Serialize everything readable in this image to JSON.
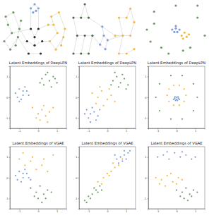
{
  "chart_data": [
    {
      "type": "network",
      "tick_labels": false,
      "series": [
        {
          "color": "#6e9a67",
          "x": [
            1,
            2,
            1.5,
            2.5,
            3,
            1.2,
            2.2,
            2.8,
            1.8,
            3.2
          ],
          "values": [
            4,
            5,
            6,
            3.5,
            5.5,
            7,
            7.5,
            4.5,
            3,
            6.5
          ]
        },
        {
          "color": "#f5b942",
          "x": [
            7,
            8,
            7.5,
            8.5,
            9,
            7.2,
            8.2,
            8.8,
            7.8,
            6.8
          ],
          "values": [
            4,
            5,
            6,
            3.5,
            5.5,
            7,
            7.5,
            4.5,
            3,
            6
          ]
        },
        {
          "color": "#7d9ed6",
          "x": [
            4.5,
            5,
            5.5,
            4.8,
            5.2
          ],
          "values": [
            8,
            8.5,
            8,
            7.5,
            7.7
          ]
        },
        {
          "color": "#2a2a2a",
          "x": [
            4,
            5,
            6,
            4.5,
            5.5,
            5,
            4.2,
            5.8
          ],
          "values": [
            4,
            3.5,
            4,
            5.5,
            5.5,
            4.5,
            2.5,
            2.5
          ]
        }
      ],
      "edges": [
        [
          0,
          0,
          0,
          1
        ],
        [
          0,
          1,
          0,
          2
        ],
        [
          0,
          2,
          0,
          5
        ],
        [
          0,
          3,
          0,
          4
        ],
        [
          0,
          4,
          0,
          6
        ],
        [
          0,
          5,
          0,
          6
        ],
        [
          0,
          7,
          0,
          8
        ],
        [
          0,
          8,
          0,
          0
        ],
        [
          0,
          9,
          0,
          4
        ],
        [
          0,
          1,
          3,
          3
        ],
        [
          0,
          4,
          3,
          0
        ],
        [
          0,
          7,
          3,
          6
        ],
        [
          1,
          0,
          1,
          1
        ],
        [
          1,
          1,
          1,
          2
        ],
        [
          1,
          2,
          1,
          5
        ],
        [
          1,
          3,
          1,
          4
        ],
        [
          1,
          4,
          1,
          6
        ],
        [
          1,
          5,
          1,
          6
        ],
        [
          1,
          7,
          1,
          8
        ],
        [
          1,
          8,
          1,
          0
        ],
        [
          1,
          9,
          1,
          2
        ],
        [
          1,
          0,
          3,
          2
        ],
        [
          1,
          9,
          3,
          4
        ],
        [
          2,
          0,
          2,
          1
        ],
        [
          2,
          1,
          2,
          2
        ],
        [
          2,
          3,
          2,
          4
        ],
        [
          2,
          0,
          3,
          3
        ],
        [
          2,
          2,
          3,
          4
        ],
        [
          3,
          0,
          3,
          1
        ],
        [
          3,
          1,
          3,
          2
        ],
        [
          3,
          3,
          3,
          5
        ],
        [
          3,
          4,
          3,
          5
        ],
        [
          3,
          6,
          3,
          7
        ],
        [
          3,
          5,
          3,
          1
        ]
      ]
    },
    {
      "type": "network",
      "tick_labels": false,
      "series": [
        {
          "color": "#4b6a47",
          "x": [
            1,
            2,
            3,
            1.5,
            2.5,
            3.5,
            1,
            2,
            3,
            2.5
          ],
          "values": [
            3,
            3,
            3,
            5,
            5,
            5,
            7,
            7,
            7,
            8.5
          ]
        },
        {
          "color": "#7d9ed6",
          "x": [
            4.5,
            5,
            5.5,
            4.8,
            5.2
          ],
          "values": [
            4,
            5,
            4.5,
            6,
            3.5
          ]
        },
        {
          "color": "#f5b942",
          "x": [
            7,
            8,
            9,
            6.5,
            7.5,
            8.5,
            9,
            7,
            8,
            8.5
          ],
          "values": [
            3,
            3,
            3.5,
            5,
            5,
            5,
            6.5,
            7,
            7,
            8
          ]
        }
      ],
      "edges": [
        [
          0,
          0,
          0,
          1
        ],
        [
          0,
          1,
          0,
          2
        ],
        [
          0,
          0,
          0,
          3
        ],
        [
          0,
          3,
          0,
          4
        ],
        [
          0,
          4,
          0,
          5
        ],
        [
          0,
          3,
          0,
          6
        ],
        [
          0,
          6,
          0,
          7
        ],
        [
          0,
          7,
          0,
          8
        ],
        [
          0,
          8,
          0,
          9
        ],
        [
          0,
          4,
          0,
          1
        ],
        [
          0,
          5,
          0,
          2
        ],
        [
          0,
          9,
          0,
          7
        ],
        [
          0,
          5,
          1,
          0
        ],
        [
          0,
          8,
          1,
          3
        ],
        [
          1,
          0,
          1,
          1
        ],
        [
          1,
          1,
          1,
          2
        ],
        [
          1,
          1,
          1,
          3
        ],
        [
          1,
          2,
          1,
          4
        ],
        [
          1,
          4,
          1,
          0
        ],
        [
          1,
          3,
          2,
          3
        ],
        [
          1,
          2,
          2,
          4
        ],
        [
          2,
          0,
          2,
          1
        ],
        [
          2,
          1,
          2,
          2
        ],
        [
          2,
          3,
          2,
          4
        ],
        [
          2,
          4,
          2,
          5
        ],
        [
          2,
          5,
          2,
          6
        ],
        [
          2,
          7,
          2,
          8
        ],
        [
          2,
          8,
          2,
          9
        ],
        [
          2,
          0,
          2,
          4
        ],
        [
          2,
          6,
          2,
          9
        ],
        [
          2,
          7,
          2,
          4
        ]
      ]
    },
    {
      "type": "network",
      "tick_labels": false,
      "series": [
        {
          "color": "#6e9a67",
          "x": [
            1,
            2,
            3,
            8,
            9,
            7,
            2,
            8,
            5,
            4,
            6,
            1.5
          ],
          "values": [
            5,
            8,
            2,
            7,
            4,
            2,
            6,
            9,
            9,
            1,
            1.5,
            3
          ]
        },
        {
          "color": "#7d9ed6",
          "x": [
            4.5,
            5,
            5.5,
            4.8,
            5.2,
            5
          ],
          "values": [
            5,
            5.2,
            5,
            4.6,
            4.6,
            5.6
          ]
        },
        {
          "color": "#f5b942",
          "x": [
            5.8,
            6.2,
            6.5,
            6,
            6.8
          ],
          "values": [
            4,
            4.5,
            3.8,
            3.5,
            4.2
          ]
        }
      ]
    },
    {
      "type": "scatter",
      "title": "Latent Embeddings of DeepLPN",
      "xlim": [
        -1.5,
        1.5
      ],
      "ylim": [
        -1.5,
        1.5
      ],
      "xticks": [
        -1,
        0,
        1
      ],
      "yticks": [
        -1,
        0,
        1
      ],
      "series": [
        {
          "color": "#6e9a67",
          "x": [
            0.2,
            0.4,
            0.6,
            0.8,
            1.0,
            0.3,
            0.5,
            0.7,
            0.9,
            0.1
          ],
          "values": [
            0.9,
            1.1,
            0.8,
            1.0,
            0.7,
            0.6,
            1.2,
            0.5,
            0.9,
            0.7
          ]
        },
        {
          "color": "#7d9ed6",
          "x": [
            -1.2,
            -1.0,
            -0.8,
            -0.6,
            -0.9,
            -1.1,
            -0.7,
            -0.5,
            -0.8,
            -1.0
          ],
          "values": [
            0.2,
            0.4,
            0.1,
            0.3,
            -0.1,
            0.0,
            0.5,
            0.1,
            0.3,
            -0.2
          ]
        },
        {
          "color": "#f5b942",
          "x": [
            -0.3,
            0.0,
            0.2,
            0.4,
            0.6,
            0.1,
            0.3,
            -0.1,
            0.5,
            0.8
          ],
          "values": [
            -0.5,
            -0.8,
            -0.6,
            -0.9,
            -0.7,
            -1.1,
            -0.4,
            -1.0,
            -1.2,
            -0.5
          ]
        }
      ]
    },
    {
      "type": "scatter",
      "title": "Latent Embeddings of DeepLPN",
      "xlim": [
        -1.5,
        1.5
      ],
      "ylim": [
        -1.5,
        1.5
      ],
      "xticks": [
        -1,
        0,
        1
      ],
      "yticks": [
        -1,
        0,
        1
      ],
      "series": [
        {
          "color": "#6e9a67",
          "x": [
            0.3,
            0.5,
            0.7,
            0.9,
            1.1,
            0.4,
            0.6,
            0.8,
            1.0,
            0.2
          ],
          "values": [
            0.8,
            1.0,
            0.7,
            0.9,
            0.6,
            1.2,
            0.5,
            1.1,
            0.4,
            0.6
          ]
        },
        {
          "color": "#f5b942",
          "x": [
            -0.8,
            -0.5,
            -0.3,
            0.0,
            0.2,
            -0.6,
            -0.2,
            0.1,
            -0.4,
            0.4
          ],
          "values": [
            0.2,
            0.0,
            0.3,
            -0.1,
            0.1,
            -0.3,
            -0.4,
            0.4,
            0.5,
            -0.2
          ]
        },
        {
          "color": "#7d9ed6",
          "x": [
            -1.1,
            -0.9,
            -0.7,
            -0.5,
            -1.0,
            -0.8,
            -0.6,
            -1.2,
            -0.4,
            -0.9
          ],
          "values": [
            -0.6,
            -0.8,
            -0.7,
            -0.9,
            -1.0,
            -0.5,
            -1.1,
            -0.8,
            -0.6,
            -1.2
          ]
        }
      ]
    },
    {
      "type": "scatter",
      "title": "Latent Embeddings of DeepLPN",
      "xlim": [
        -1.5,
        1.5
      ],
      "ylim": [
        -1.5,
        1.5
      ],
      "xticks": [
        -1,
        0,
        1
      ],
      "yticks": [
        -1,
        0,
        1
      ],
      "series": [
        {
          "color": "#6e9a67",
          "x": [
            1.1,
            0.9,
            0.3,
            -0.3,
            -0.9,
            -1.1,
            -0.9,
            -0.3,
            0.3,
            0.9
          ],
          "values": [
            0.0,
            0.65,
            1.05,
            1.05,
            0.65,
            0.0,
            -0.65,
            -1.05,
            -1.05,
            -0.65
          ]
        },
        {
          "color": "#f5b942",
          "x": [
            0.5,
            0.4,
            0.15,
            -0.15,
            -0.4,
            -0.5,
            -0.4,
            -0.15,
            0.15,
            0.4
          ],
          "values": [
            0.1,
            0.4,
            0.58,
            0.58,
            0.4,
            0.1,
            -0.2,
            -0.38,
            -0.38,
            -0.2
          ]
        },
        {
          "color": "#7d9ed6",
          "x": [
            -0.1,
            0.0,
            0.1,
            -0.05,
            0.05,
            -0.15,
            0.15,
            0.0,
            -0.08,
            0.08
          ],
          "values": [
            -0.05,
            -0.1,
            -0.05,
            -0.15,
            -0.15,
            -0.1,
            -0.1,
            0.0,
            0.02,
            0.02
          ]
        }
      ]
    },
    {
      "type": "scatter",
      "title": "Latent Embeddings of VGAE",
      "xlim": [
        -1.5,
        1.5
      ],
      "ylim": [
        -1.5,
        1.5
      ],
      "xticks": [
        -1,
        0,
        1
      ],
      "yticks": [
        -1,
        0,
        1
      ],
      "series": [
        {
          "color": "#f5b942",
          "x": [
            -1.0,
            -0.7,
            -0.4,
            -0.1,
            0.2,
            0.5,
            -0.8,
            -0.3,
            0.3,
            0.8
          ],
          "values": [
            0.9,
            0.6,
            0.8,
            0.4,
            0.6,
            0.3,
            1.2,
            1.0,
            0.9,
            1.1
          ]
        },
        {
          "color": "#7d9ed6",
          "x": [
            -1.2,
            -1.0,
            -0.8,
            -0.6,
            -0.9,
            -1.1,
            -0.7,
            -0.5,
            -0.8,
            -0.4
          ],
          "values": [
            0.1,
            0.3,
            0.0,
            0.2,
            -0.2,
            -0.1,
            0.4,
            0.0,
            0.2,
            -0.1
          ]
        },
        {
          "color": "#6e9a67",
          "x": [
            -0.4,
            -0.1,
            0.1,
            0.3,
            0.5,
            0.0,
            0.2,
            -0.2,
            0.4,
            0.7
          ],
          "values": [
            -0.5,
            -0.7,
            -0.4,
            -0.8,
            -0.6,
            -1.0,
            -1.2,
            -0.9,
            -1.0,
            -0.7
          ]
        }
      ]
    },
    {
      "type": "scatter",
      "title": "Latent Embeddings of VGAE",
      "xlim": [
        -1.5,
        1.5
      ],
      "ylim": [
        -1.5,
        1.5
      ],
      "xticks": [
        -1,
        0,
        1
      ],
      "yticks": [
        -1,
        0,
        1
      ],
      "series": [
        {
          "color": "#6e9a67",
          "x": [
            -1.2,
            -1.0,
            -0.8,
            -0.6,
            -0.9,
            -0.7,
            -0.5,
            -1.1,
            -0.4,
            -0.3
          ],
          "values": [
            -1.1,
            -0.9,
            -0.8,
            -0.6,
            -1.0,
            -0.5,
            -0.7,
            -1.2,
            -0.4,
            -0.6
          ]
        },
        {
          "color": "#f5b942",
          "x": [
            -0.5,
            -0.2,
            0.0,
            0.2,
            0.4,
            0.6,
            -0.3,
            0.1,
            0.3,
            0.8
          ],
          "values": [
            -0.2,
            0.0,
            0.2,
            0.3,
            0.5,
            0.6,
            -0.3,
            0.1,
            0.7,
            0.9
          ]
        },
        {
          "color": "#7d9ed6",
          "x": [
            0.5,
            0.7,
            0.9,
            1.1,
            0.6,
            0.8,
            1.0,
            1.2,
            0.4,
            0.9
          ],
          "values": [
            0.9,
            1.0,
            1.1,
            1.2,
            0.7,
            0.8,
            0.9,
            1.3,
            1.1,
            1.3
          ]
        }
      ]
    },
    {
      "type": "scatter",
      "title": "Latent Embeddings of VGAE",
      "xlim": [
        -1.5,
        1.5
      ],
      "ylim": [
        -1.5,
        1.5
      ],
      "xticks": [
        -1,
        0,
        1
      ],
      "yticks": [
        -1,
        0,
        1
      ],
      "series": [
        {
          "color": "#7d9ed6",
          "x": [
            -1.0,
            -0.7,
            -0.4,
            -0.1,
            0.2,
            0.5,
            0.8,
            1.0,
            -0.5,
            0.3
          ],
          "values": [
            1.0,
            1.1,
            0.9,
            1.2,
            1.0,
            1.1,
            0.9,
            1.0,
            1.25,
            1.25
          ]
        },
        {
          "color": "#f5b942",
          "x": [
            -1.1,
            -0.8,
            -0.5,
            -0.2,
            0.1,
            -0.9,
            -0.6,
            -0.3,
            0.0,
            0.3
          ],
          "values": [
            0.0,
            -0.1,
            0.1,
            -0.2,
            0.0,
            -0.3,
            -0.4,
            0.2,
            -0.3,
            -0.1
          ]
        },
        {
          "color": "#6e9a67",
          "x": [
            0.0,
            0.3,
            0.5,
            0.7,
            0.9,
            0.2,
            0.4,
            0.6,
            0.8,
            1.1
          ],
          "values": [
            -0.6,
            -0.7,
            -0.5,
            -0.8,
            -0.6,
            -0.9,
            -1.0,
            -1.1,
            -0.9,
            -0.7
          ]
        }
      ]
    }
  ]
}
